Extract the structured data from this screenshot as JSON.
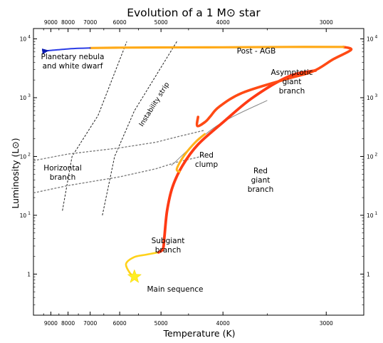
{
  "chart_data": {
    "type": "line",
    "title": "Evolution of a 1 M⊙ star",
    "xlabel": "Temperature (K)",
    "ylabel": "Luminosity (L⊙)",
    "x_axis": {
      "scale": "reciprocal",
      "reversed": true,
      "range": [
        10300,
        2750
      ],
      "ticks": [
        9000,
        8000,
        7000,
        6000,
        5000,
        4000,
        3000
      ],
      "tick_labels": [
        "9000",
        "8000",
        "7000",
        "6000",
        "5000",
        "4000",
        "3000"
      ]
    },
    "y_axis": {
      "scale": "log",
      "range": [
        0.2,
        15000
      ],
      "ticks": [
        1,
        10,
        100,
        1000,
        10000
      ],
      "tick_labels": [
        {
          "base": "1",
          "exp": ""
        },
        {
          "base": "10",
          "exp": "1"
        },
        {
          "base": "10",
          "exp": "2"
        },
        {
          "base": "10",
          "exp": "3"
        },
        {
          "base": "10",
          "exp": "4"
        }
      ]
    },
    "grid": false,
    "main_sequence_point": {
      "label": "Main sequence",
      "temperature": 5600,
      "luminosity": 0.9
    },
    "series": [
      {
        "name": "Subgiant branch",
        "color": "#ffd21a",
        "points": [
          [
            5600,
            0.9
          ],
          [
            5720,
            1.05
          ],
          [
            5820,
            1.5
          ],
          [
            5600,
            1.95
          ],
          [
            5300,
            2.15
          ],
          [
            5050,
            2.35
          ]
        ]
      },
      {
        "name": "Red giant branch",
        "color": "#ff3a14",
        "points": [
          [
            5050,
            2.35
          ],
          [
            4960,
            2.7
          ],
          [
            4930,
            4.5
          ],
          [
            4880,
            12
          ],
          [
            4780,
            30
          ],
          [
            4600,
            70
          ],
          [
            4350,
            160
          ],
          [
            4000,
            380
          ],
          [
            3650,
            1000
          ],
          [
            3300,
            2300
          ],
          [
            3080,
            2900
          ]
        ]
      },
      {
        "name": "Red clump",
        "color": "#ffb21a",
        "points": [
          [
            4650,
            55
          ],
          [
            4700,
            62
          ],
          [
            4570,
            105
          ],
          [
            4380,
            180
          ],
          [
            4250,
            240
          ]
        ]
      },
      {
        "name": "Asymptotic giant branch",
        "color": "#ff4a14",
        "points": [
          [
            4350,
            470
          ],
          [
            4360,
            330
          ],
          [
            4240,
            390
          ],
          [
            4170,
            480
          ],
          [
            4050,
            700
          ],
          [
            3770,
            1200
          ],
          [
            3350,
            2000
          ],
          [
            3100,
            2800
          ],
          [
            2950,
            4500
          ],
          [
            2830,
            6500
          ],
          [
            2880,
            7300
          ]
        ]
      },
      {
        "name": "Post - AGB",
        "color": "#ffaa18",
        "points": [
          [
            2880,
            7300
          ],
          [
            3300,
            7300
          ],
          [
            4000,
            7200
          ],
          [
            5000,
            7150
          ],
          [
            6000,
            7100
          ],
          [
            7000,
            7000
          ]
        ]
      },
      {
        "name": "Planetary nebula and white dwarf",
        "color": "#2b3de6",
        "points": [
          [
            7000,
            7000
          ],
          [
            7500,
            6900
          ],
          [
            8000,
            6750
          ],
          [
            8500,
            6550
          ],
          [
            9200,
            6300
          ]
        ]
      }
    ],
    "thin_track": {
      "color": "#888888",
      "points": [
        [
          4800,
          70
        ],
        [
          4100,
          320
        ],
        [
          3500,
          900
        ]
      ]
    },
    "instability_strip": {
      "label": "Instability strip",
      "blue_edge": [
        [
          8300,
          12
        ],
        [
          7800,
          100
        ],
        [
          6700,
          500
        ],
        [
          5800,
          9000
        ]
      ],
      "red_edge": [
        [
          6550,
          10
        ],
        [
          6150,
          100
        ],
        [
          5600,
          600
        ],
        [
          4700,
          9000
        ]
      ]
    },
    "horizontal_branch": {
      "label": "Horizontal branch",
      "upper": [
        [
          10300,
          85
        ],
        [
          8000,
          110
        ],
        [
          6000,
          140
        ],
        [
          5100,
          175
        ],
        [
          4700,
          215
        ],
        [
          4250,
          280
        ]
      ],
      "lower": [
        [
          10300,
          24
        ],
        [
          8000,
          32
        ],
        [
          6000,
          45
        ],
        [
          5100,
          62
        ],
        [
          4700,
          80
        ],
        [
          4300,
          100
        ]
      ]
    },
    "annotations": [
      {
        "text_lines": [
          "Planetary nebula",
          "and white dwarf"
        ],
        "anchor": "middle"
      },
      {
        "text_lines": [
          "Post - AGB"
        ],
        "anchor": "middle"
      },
      {
        "text_lines": [
          "Asymptotic",
          "giant",
          "branch"
        ],
        "anchor": "middle"
      },
      {
        "text_lines": [
          "Red",
          "clump"
        ],
        "anchor": "middle"
      },
      {
        "text_lines": [
          "Red",
          "giant",
          "branch"
        ],
        "anchor": "middle"
      },
      {
        "text_lines": [
          "Horizontal",
          "branch"
        ],
        "anchor": "middle"
      },
      {
        "text_lines": [
          "Subgiant",
          "branch"
        ],
        "anchor": "middle"
      },
      {
        "text_lines": [
          "Main sequence"
        ],
        "anchor": "middle"
      }
    ],
    "colors": {
      "background": "#ffffff",
      "star": "#ffee22",
      "arrow": "#2b3de6"
    }
  }
}
